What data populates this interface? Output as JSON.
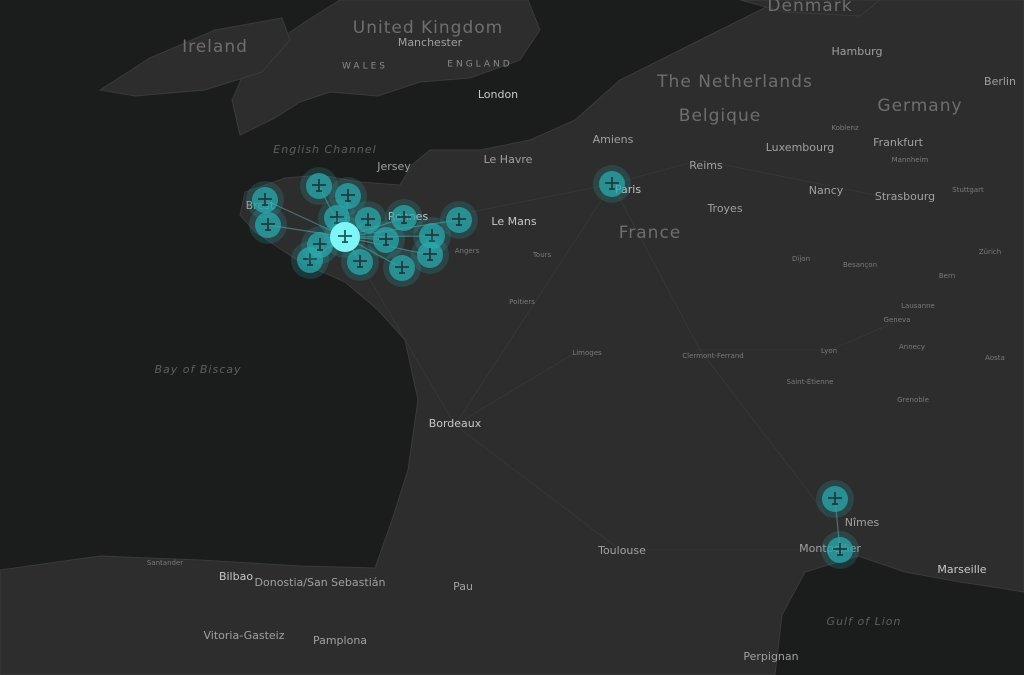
{
  "countries": [
    "Ireland",
    "United Kingdom",
    "Germany",
    "France",
    "The Netherlands",
    "Belgique",
    "Denmark"
  ],
  "regions": [
    "WALES",
    "ENGLAND"
  ],
  "seas": [
    "English Channel",
    "Bay of Biscay",
    "Gulf of Lion"
  ],
  "cities": [
    "Manchester",
    "London",
    "Jersey",
    "Le Havre",
    "Amiens",
    "Hamburg",
    "Berlin",
    "Koblenz",
    "Frankfurt",
    "Mannheim",
    "Luxembourg",
    "Reims",
    "Paris",
    "Nancy",
    "Strasbourg",
    "Stuttgart",
    "Troyes",
    "Le Mans",
    "Rennes",
    "Brest",
    "Angers",
    "Tours",
    "Poitiers",
    "Limoges",
    "Clermont-Ferrand",
    "Lyon",
    "Saint-Étienne",
    "Geneva",
    "Grenoble",
    "Bordeaux",
    "Toulouse",
    "Nîmes",
    "Montpellier",
    "Marseille",
    "Perpignan",
    "Pau",
    "Bilbao",
    "Santander",
    "Donostia/San Sebastián",
    "Vitoria-Gasteiz",
    "Pamplona",
    "Dijon",
    "Besançon",
    "Zürich",
    "Bern",
    "Lausanne",
    "Annecy",
    "Aosta"
  ]
}
